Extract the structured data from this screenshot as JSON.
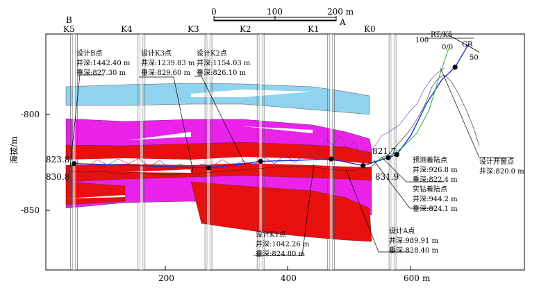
{
  "scale_bar": {
    "ticks": [
      "0",
      "100",
      "200 m"
    ],
    "point": "A"
  },
  "well_labels": [
    {
      "top": "B",
      "bottom": "K5"
    },
    {
      "top": "",
      "bottom": "K4"
    },
    {
      "top": "",
      "bottom": "K3"
    },
    {
      "top": "",
      "bottom": "K2"
    },
    {
      "top": "",
      "bottom": "K1"
    },
    {
      "top": "",
      "bottom": "K0"
    }
  ],
  "axes": {
    "y_title": "海拔/m",
    "y_ticks": [
      "-800",
      "-850"
    ],
    "x_ticks": [
      "200",
      "400",
      "600"
    ],
    "x_unit": "m"
  },
  "depth_markers": {
    "left_top": "823.8",
    "left_bottom": "830.8",
    "right_top": "821.7",
    "right_bottom": "831.9"
  },
  "compass": {
    "rt": "RT/K5",
    "gr": "GR",
    "n100": "100",
    "n00": "0/0",
    "n50": "50"
  },
  "annotations": {
    "design_b": [
      "设计B点",
      "井深:1442.40 m",
      "垂深:827.30 m"
    ],
    "design_k3": [
      "设计K3点",
      "井深:1239.83 m",
      "垂深:829.60 m"
    ],
    "design_k2": [
      "设计K2点",
      "井深:1154.03 m",
      "垂深:826.10 m"
    ],
    "design_k1": [
      "设计K1点",
      "井深:1042.26 m",
      "垂深:824.80 m"
    ],
    "design_a": [
      "设计A点",
      "井深:989.91 m",
      "垂深:828.40 m"
    ],
    "landing": [
      "预测着陆点",
      "井深:926.8 m",
      "垂深:822.4 m",
      "实钻着陆点",
      "井深:944.2 m",
      "垂深:824.1 m"
    ],
    "window": [
      "设计开窗点",
      "井深:820.0 m"
    ]
  },
  "chart_data": {
    "type": "cross-section",
    "x_range_m": [
      -20,
      760
    ],
    "elevation_range_m": [
      -885,
      -757
    ],
    "wells": [
      {
        "name": "K5",
        "x_m": 26
      },
      {
        "name": "K4",
        "x_m": 136
      },
      {
        "name": "K3",
        "x_m": 245
      },
      {
        "name": "K2",
        "x_m": 330
      },
      {
        "name": "K1",
        "x_m": 445
      },
      {
        "name": "K0",
        "x_m": 545
      }
    ],
    "key_points": [
      {
        "name": "设计B点",
        "x_m": 26,
        "elev_m": -827.3
      },
      {
        "name": "设计K3点",
        "x_m": 245,
        "elev_m": -829.6
      },
      {
        "name": "设计K2点",
        "x_m": 330,
        "elev_m": -826.1
      },
      {
        "name": "设计K1点",
        "x_m": 445,
        "elev_m": -824.8
      },
      {
        "name": "设计A点",
        "x_m": 497,
        "elev_m": -828.4
      },
      {
        "name": "实钻着陆点",
        "x_m": 538,
        "elev_m": -824.1
      },
      {
        "name": "预测着陆点",
        "x_m": 552,
        "elev_m": -822.4
      },
      {
        "name": "设计开窗点",
        "x_m": 647,
        "elev_m": -775
      }
    ],
    "trajectory_elev_m": [
      [
        26,
        -827.3
      ],
      [
        100,
        -828
      ],
      [
        180,
        -829
      ],
      [
        245,
        -829.6
      ],
      [
        290,
        -828
      ],
      [
        330,
        -826.1
      ],
      [
        390,
        -825.5
      ],
      [
        445,
        -824.8
      ],
      [
        497,
        -828.4
      ],
      [
        520,
        -826
      ],
      [
        538,
        -824.1
      ],
      [
        552,
        -822.4
      ],
      [
        575,
        -812
      ],
      [
        600,
        -795
      ],
      [
        625,
        -782
      ],
      [
        647,
        -775
      ],
      [
        670,
        -762
      ]
    ],
    "layers": [
      {
        "name": "cyan",
        "color": "#8fd3f0"
      },
      {
        "name": "magenta",
        "color": "#ea22ea"
      },
      {
        "name": "red",
        "color": "#e8100e"
      }
    ]
  }
}
